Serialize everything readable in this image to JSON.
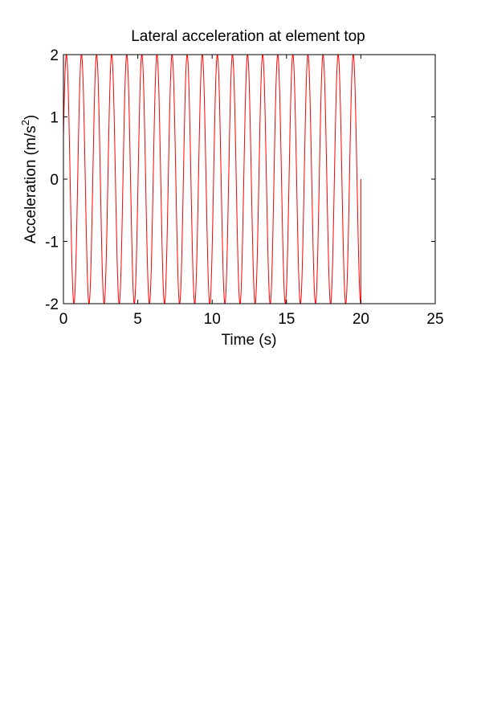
{
  "chart_data": {
    "type": "line",
    "title": "Lateral acceleration at element top",
    "xlabel": "Time (s)",
    "ylabel_main": "Acceleration (m/s",
    "ylabel_sup": "2",
    "ylabel_close": ")",
    "xlim": [
      0,
      25
    ],
    "ylim": [
      -2,
      2
    ],
    "xticks": [
      0,
      5,
      10,
      15,
      20,
      25
    ],
    "yticks": [
      -2,
      -1,
      0,
      1,
      2
    ],
    "grid": false,
    "series": [
      {
        "color": "#ff0000",
        "signal": {
          "kind": "sinusoid",
          "amplitude": 2.0,
          "frequency_hz": 0.985,
          "phase_rad": 0.349,
          "t_start": 0,
          "t_end": 20.0
        }
      }
    ]
  }
}
